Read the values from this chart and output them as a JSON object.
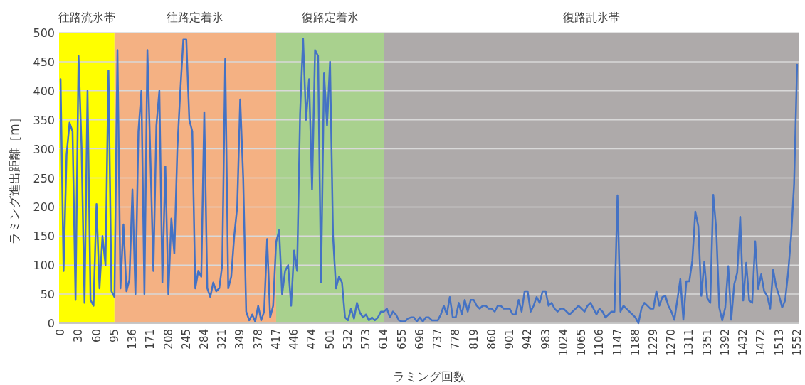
{
  "chart_data": {
    "type": "line",
    "xlabel": "ラミング回数",
    "ylabel": "ラミング進出距離［m］",
    "grid": "y",
    "ylim": [
      0,
      500
    ],
    "yticks": [
      0,
      50,
      100,
      150,
      200,
      250,
      300,
      350,
      400,
      450,
      500
    ],
    "categories": [
      "0",
      null,
      null,
      null,
      null,
      null,
      "30",
      null,
      null,
      null,
      null,
      null,
      "60",
      null,
      null,
      null,
      null,
      null,
      "95",
      null,
      null,
      null,
      null,
      null,
      "136",
      null,
      null,
      null,
      null,
      null,
      "171",
      null,
      null,
      null,
      null,
      null,
      "208",
      null,
      null,
      null,
      null,
      null,
      "245",
      null,
      null,
      null,
      null,
      null,
      "284",
      null,
      null,
      null,
      null,
      null,
      "321",
      null,
      null,
      null,
      null,
      null,
      "349",
      null,
      null,
      null,
      null,
      null,
      "378",
      null,
      null,
      null,
      null,
      null,
      "417",
      null,
      null,
      null,
      null,
      null,
      "446",
      null,
      null,
      null,
      null,
      null,
      "474",
      null,
      null,
      null,
      null,
      null,
      "501",
      null,
      null,
      null,
      null,
      null,
      "532",
      null,
      null,
      null,
      null,
      null,
      "573",
      null,
      null,
      null,
      null,
      null,
      "614",
      null,
      null,
      null,
      null,
      null,
      "655",
      null,
      null,
      null,
      null,
      null,
      "696",
      null,
      null,
      null,
      null,
      null,
      "737",
      null,
      null,
      null,
      null,
      null,
      "778",
      null,
      null,
      null,
      null,
      null,
      "819",
      null,
      null,
      null,
      null,
      null,
      "860",
      null,
      null,
      null,
      null,
      null,
      "901",
      null,
      null,
      null,
      null,
      null,
      "942",
      null,
      null,
      null,
      null,
      null,
      "983",
      null,
      null,
      null,
      null,
      null,
      "1024",
      null,
      null,
      null,
      null,
      null,
      "1065",
      null,
      null,
      null,
      null,
      null,
      "1106",
      null,
      null,
      null,
      null,
      null,
      "1147",
      null,
      null,
      null,
      null,
      null,
      "1188",
      null,
      null,
      null,
      null,
      null,
      "1229",
      null,
      null,
      null,
      null,
      null,
      "1270",
      null,
      null,
      null,
      null,
      null,
      "1311",
      null,
      null,
      null,
      null,
      null,
      "1351",
      null,
      null,
      null,
      null,
      null,
      "1392",
      null,
      null,
      null,
      null,
      null,
      "1432",
      null,
      null,
      null,
      null,
      null,
      "1472",
      null,
      null,
      null,
      null,
      null,
      "1513",
      null,
      null,
      null,
      null,
      null,
      "1552"
    ],
    "bands": [
      {
        "axis": "x",
        "from": "0",
        "to": "95",
        "label": "往路流氷帯",
        "color": "#ffff00"
      },
      {
        "axis": "x",
        "from": "95",
        "to": "417",
        "label": "往路定着氷",
        "color": "#f4b183"
      },
      {
        "axis": "x",
        "from": "417",
        "to": "614",
        "label": "復路定着氷",
        "color": "#a9d18e"
      },
      {
        "axis": "x",
        "from": "614",
        "to": "1552",
        "label": "復路乱氷帯",
        "color": "#aeaaaa"
      }
    ],
    "series": [
      {
        "color": "#4472c4",
        "values": [
          420,
          90,
          290,
          345,
          330,
          40,
          460,
          305,
          35,
          400,
          40,
          30,
          205,
          60,
          150,
          100,
          435,
          55,
          45,
          470,
          60,
          170,
          55,
          75,
          230,
          50,
          330,
          400,
          50,
          470,
          285,
          90,
          340,
          400,
          70,
          270,
          50,
          180,
          120,
          300,
          400,
          488,
          488,
          350,
          330,
          60,
          90,
          80,
          363,
          60,
          45,
          70,
          55,
          60,
          100,
          455,
          60,
          80,
          150,
          200,
          385,
          250,
          20,
          5,
          15,
          3,
          30,
          5,
          20,
          145,
          10,
          30,
          140,
          160,
          50,
          90,
          100,
          30,
          125,
          90,
          360,
          490,
          350,
          420,
          230,
          470,
          460,
          70,
          430,
          340,
          450,
          150,
          60,
          80,
          70,
          10,
          5,
          25,
          8,
          35,
          18,
          10,
          15,
          5,
          10,
          5,
          10,
          20,
          20,
          25,
          10,
          20,
          15,
          5,
          3,
          3,
          8,
          10,
          10,
          3,
          10,
          3,
          10,
          10,
          5,
          5,
          5,
          15,
          30,
          15,
          45,
          10,
          10,
          35,
          15,
          40,
          20,
          40,
          40,
          30,
          25,
          30,
          30,
          25,
          25,
          20,
          30,
          30,
          25,
          25,
          25,
          15,
          15,
          40,
          20,
          55,
          55,
          20,
          30,
          45,
          35,
          55,
          55,
          30,
          35,
          25,
          20,
          25,
          25,
          20,
          15,
          20,
          25,
          30,
          25,
          20,
          30,
          35,
          25,
          15,
          25,
          20,
          10,
          15,
          20,
          20,
          220,
          20,
          30,
          25,
          20,
          15,
          10,
          0,
          25,
          35,
          30,
          25,
          25,
          55,
          30,
          45,
          47,
          30,
          20,
          6,
          40,
          76,
          6,
          72,
          72,
          108,
          192,
          167,
          47,
          106,
          43,
          35,
          221,
          161,
          27,
          5,
          27,
          98,
          6,
          67,
          87,
          183,
          39,
          104,
          39,
          35,
          141,
          59,
          84,
          55,
          47,
          25,
          92,
          63,
          47,
          27,
          39,
          87,
          149,
          240,
          445
        ]
      }
    ]
  }
}
